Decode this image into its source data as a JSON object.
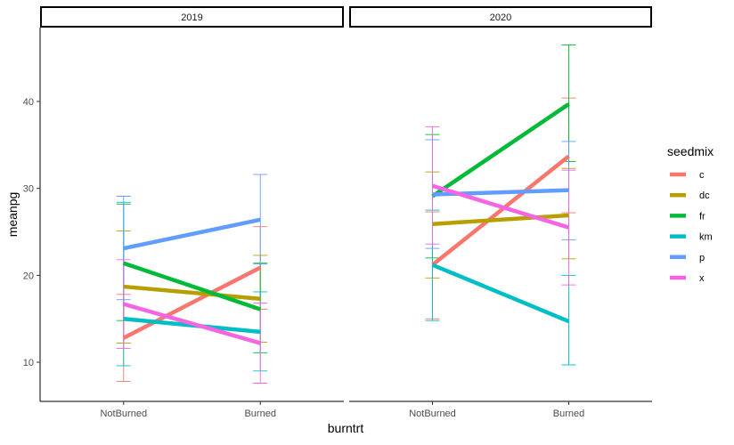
{
  "chart_data": {
    "type": "line",
    "facet_labels": [
      "2019",
      "2020"
    ],
    "categories": [
      "NotBurned",
      "Burned"
    ],
    "xlabel": "burntrt",
    "ylabel": "meanpg",
    "ylim": [
      5.5,
      48.5
    ],
    "yticks": [
      10,
      20,
      30,
      40
    ],
    "legend": {
      "title": "seedmix",
      "position": "right"
    },
    "series": [
      {
        "name": "c",
        "color": "#F8766D",
        "panels": [
          {
            "means": [
              12.8,
              20.9
            ],
            "lower": [
              7.8,
              16.1
            ],
            "upper": [
              17.8,
              25.6
            ]
          },
          {
            "means": [
              21.2,
              33.7
            ],
            "lower": [
              15.0,
              27.2
            ],
            "upper": [
              27.3,
              40.4
            ]
          }
        ]
      },
      {
        "name": "dc",
        "color": "#B79F00",
        "panels": [
          {
            "means": [
              18.7,
              17.3
            ],
            "lower": [
              12.2,
              12.3
            ],
            "upper": [
              25.1,
              22.3
            ]
          },
          {
            "means": [
              25.9,
              26.9
            ],
            "lower": [
              19.7,
              21.9
            ],
            "upper": [
              31.9,
              32.3
            ]
          }
        ]
      },
      {
        "name": "fr",
        "color": "#00BA38",
        "panels": [
          {
            "means": [
              21.4,
              16.1
            ],
            "lower": [
              14.8,
              11.1
            ],
            "upper": [
              28.2,
              21.4
            ]
          },
          {
            "means": [
              29.1,
              39.7
            ],
            "lower": [
              22.0,
              33.1
            ],
            "upper": [
              36.2,
              46.5
            ]
          }
        ]
      },
      {
        "name": "km",
        "color": "#00BFC4",
        "panels": [
          {
            "means": [
              15.0,
              13.5
            ],
            "lower": [
              9.6,
              9.0
            ],
            "upper": [
              28.4,
              18.1
            ]
          },
          {
            "means": [
              21.2,
              14.7
            ],
            "lower": [
              14.8,
              9.7
            ],
            "upper": [
              27.5,
              20.0
            ]
          }
        ]
      },
      {
        "name": "p",
        "color": "#619CFF",
        "panels": [
          {
            "means": [
              23.1,
              26.4
            ],
            "lower": [
              17.2,
              21.3
            ],
            "upper": [
              29.1,
              31.6
            ]
          },
          {
            "means": [
              29.3,
              29.8
            ],
            "lower": [
              23.1,
              24.1
            ],
            "upper": [
              35.6,
              35.4
            ]
          }
        ]
      },
      {
        "name": "x",
        "color": "#F564E3",
        "panels": [
          {
            "means": [
              16.7,
              12.2
            ],
            "lower": [
              11.6,
              7.6
            ],
            "upper": [
              21.8,
              16.8
            ]
          },
          {
            "means": [
              30.3,
              25.5
            ],
            "lower": [
              23.6,
              18.9
            ],
            "upper": [
              37.1,
              32.1
            ]
          }
        ]
      }
    ]
  }
}
